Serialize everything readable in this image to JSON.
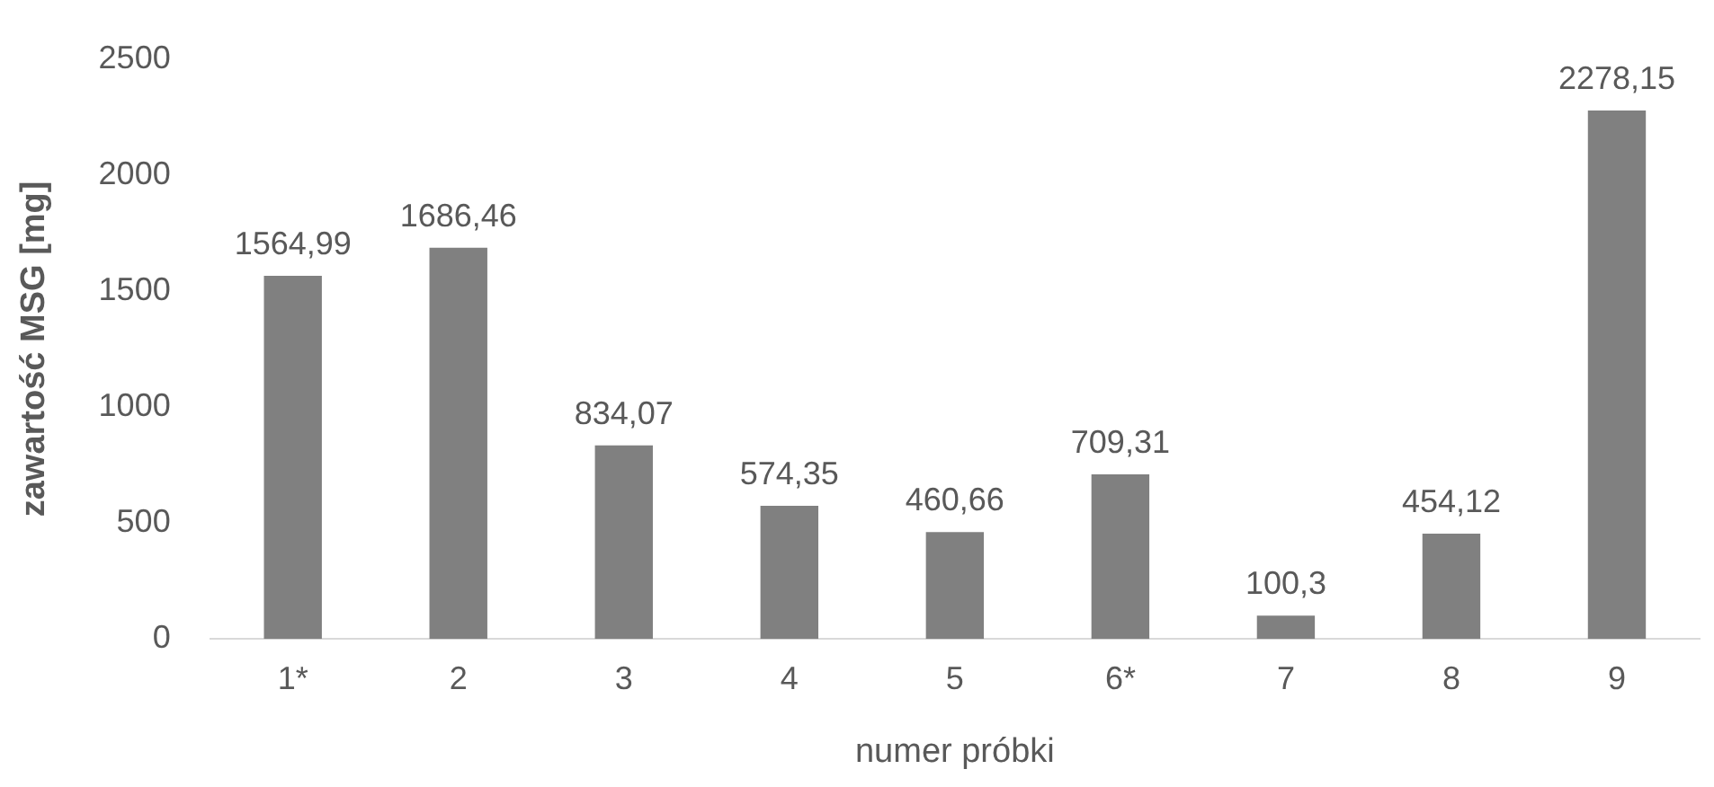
{
  "chart_data": {
    "type": "bar",
    "xlabel": "numer próbki",
    "ylabel": "zawartość MSG [mg]",
    "categories": [
      "1*",
      "2",
      "3",
      "4",
      "5",
      "6*",
      "7",
      "8",
      "9"
    ],
    "values": [
      1564.99,
      1686.46,
      834.07,
      574.35,
      460.66,
      709.31,
      100.3,
      454.12,
      2278.15
    ],
    "value_labels": [
      "1564,99",
      "1686,46",
      "834,07",
      "574,35",
      "460,66",
      "709,31",
      "100,3",
      "454,12",
      "2278,15"
    ],
    "color": "#808080",
    "ylim": [
      0,
      2500
    ],
    "yticks": [
      0,
      500,
      1000,
      1500,
      2000,
      2500
    ],
    "grid": false,
    "legend": false
  }
}
